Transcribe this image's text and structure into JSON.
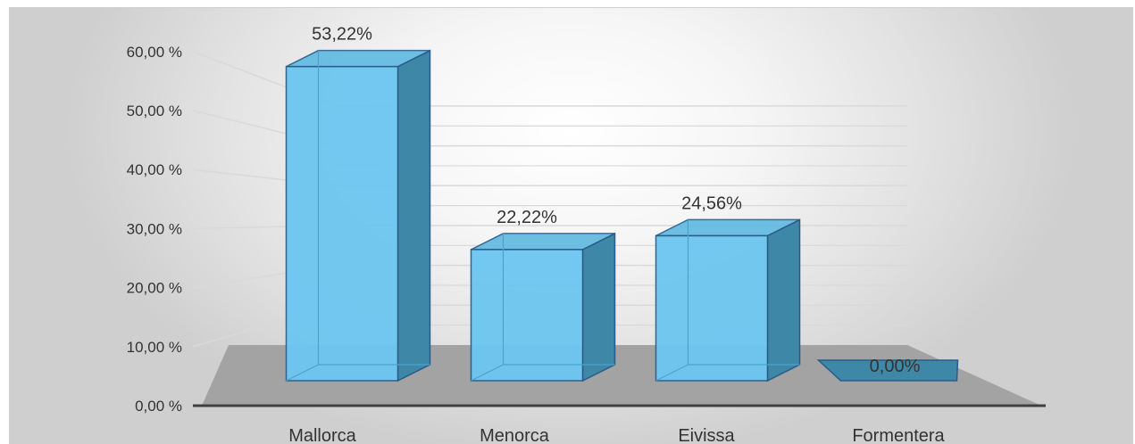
{
  "chart_data": {
    "type": "bar",
    "categories": [
      "Mallorca",
      "Menorca",
      "Eivissa",
      "Formentera"
    ],
    "values": [
      53.22,
      22.22,
      24.56,
      0.0
    ],
    "data_labels": [
      "53,22%",
      "22,22%",
      "24,56%",
      "0,00%"
    ],
    "ylim": [
      0,
      60
    ],
    "yticks": [
      0,
      10,
      20,
      30,
      40,
      50,
      60
    ],
    "ytick_labels": [
      "0,00 %",
      "10,00 %",
      "20,00 %",
      "30,00 %",
      "40,00 %",
      "50,00 %",
      "60,00 %"
    ],
    "style": "3d-column",
    "grid": true,
    "colors": {
      "bar_front": "#6cc6f0",
      "bar_side": "#3f87a6",
      "bar_outline": "#2a5c8a",
      "floor": "#a3a3a3",
      "gridline": "#d9d9d9",
      "axis": "#404040"
    }
  }
}
